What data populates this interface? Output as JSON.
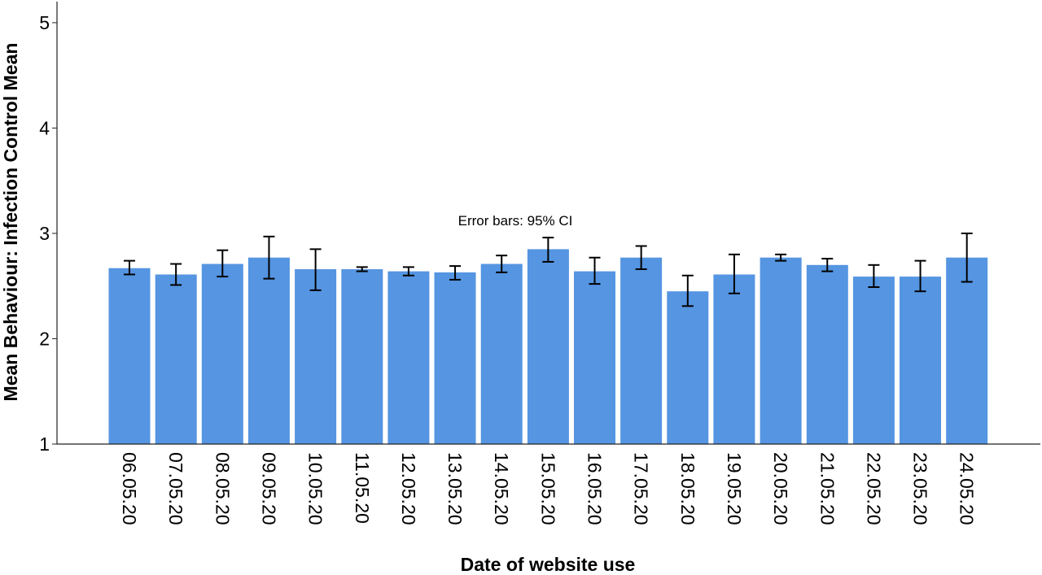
{
  "chart_data": {
    "type": "bar",
    "xlabel": "Date of website use",
    "ylabel": "Mean Behaviour: Infection Control Mean",
    "annotation": "Error bars: 95% CI",
    "ylim": [
      1,
      5.2
    ],
    "yticks": [
      "1",
      "2",
      "3",
      "4",
      "5"
    ],
    "categories": [
      "06.05.20",
      "07.05.20",
      "08.05.20",
      "09.05.20",
      "10.05.20",
      "11.05.20",
      "12.05.20",
      "13.05.20",
      "14.05.20",
      "15.05.20",
      "16.05.20",
      "17.05.20",
      "18.05.20",
      "19.05.20",
      "20.05.20",
      "21.05.20",
      "22.05.20",
      "23.05.20",
      "24.05.20"
    ],
    "values": [
      2.67,
      2.61,
      2.71,
      2.77,
      2.66,
      2.66,
      2.64,
      2.63,
      2.71,
      2.85,
      2.64,
      2.77,
      2.45,
      2.61,
      2.77,
      2.7,
      2.59,
      2.59,
      2.77
    ],
    "error_low": [
      2.61,
      2.51,
      2.59,
      2.57,
      2.46,
      2.64,
      2.6,
      2.56,
      2.63,
      2.73,
      2.52,
      2.66,
      2.31,
      2.43,
      2.74,
      2.64,
      2.49,
      2.45,
      2.54
    ],
    "error_high": [
      2.74,
      2.71,
      2.84,
      2.97,
      2.85,
      2.68,
      2.68,
      2.69,
      2.79,
      2.96,
      2.77,
      2.88,
      2.6,
      2.8,
      2.8,
      2.76,
      2.7,
      2.74,
      3.0
    ],
    "bar_color": "#5595e2",
    "error_color": "#000000",
    "grid": false,
    "error_bars": "95% CI"
  }
}
